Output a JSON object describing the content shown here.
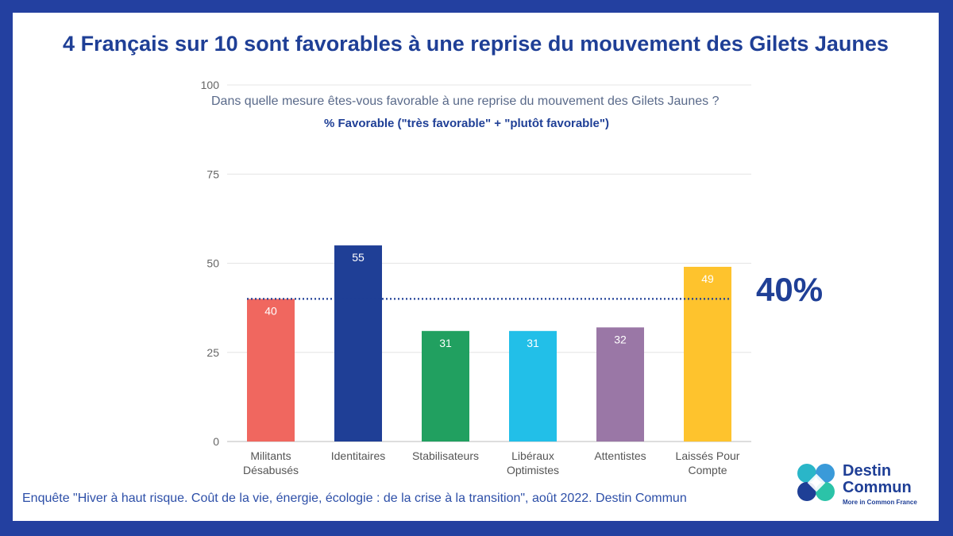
{
  "title": "4 Français sur 10 sont favorables à une reprise du mouvement des Gilets Jaunes",
  "question": "Dans quelle mesure êtes-vous  favorable à une reprise du mouvement des Gilets Jaunes ?",
  "measure": "% Favorable (\"très favorable\" + \"plutôt favorable\")",
  "overall": "40%",
  "footer": "Enquête \"Hiver à haut risque. Coût de la vie, énergie, écologie : de la crise à la transition\", août 2022. Destin Commun",
  "logo": {
    "name": "Destin Commun",
    "tagline": "More in Common France"
  },
  "colors": {
    "frame": "#2340a0",
    "accent": "#1f3f96"
  },
  "chart_data": {
    "type": "bar",
    "categories": [
      [
        "Militants",
        "Désabusés"
      ],
      [
        "Identitaires"
      ],
      [
        "Stabilisateurs"
      ],
      [
        "Libéraux",
        "Optimistes"
      ],
      [
        "Attentistes"
      ],
      [
        "Laissés Pour",
        "Compte"
      ]
    ],
    "values": [
      40,
      55,
      31,
      31,
      32,
      49
    ],
    "value_labels": [
      "40",
      "55",
      "31",
      "31",
      "32",
      "49"
    ],
    "colors": [
      "#f0675f",
      "#1f3f96",
      "#21a060",
      "#22bfe8",
      "#9a77a6",
      "#fec32d"
    ],
    "yticks": [
      0,
      25,
      50,
      75,
      100
    ],
    "ylim": [
      0,
      100
    ],
    "reference_line": 40,
    "grid": true,
    "title": "4 Français sur 10 sont favorables à une reprise du mouvement des Gilets Jaunes",
    "xlabel": "",
    "ylabel": ""
  }
}
